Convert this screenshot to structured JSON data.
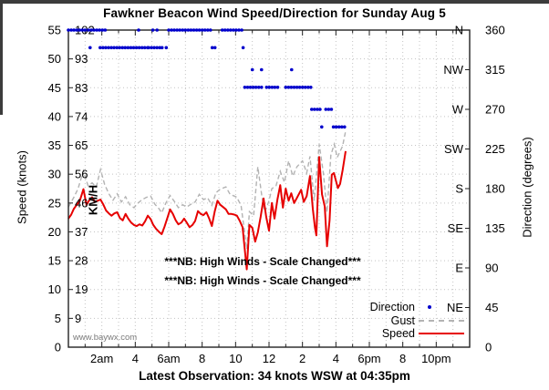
{
  "window": {
    "edge_color": "#3c3c3c"
  },
  "header": {
    "title": "Fawkner Beacon Wind Speed/Direction for Sunday Aug 5"
  },
  "footer": {
    "latest_observation": "Latest Observation: 34 knots WSW at 04:35pm"
  },
  "watermark": "www.baywx.com",
  "notes": [
    "***NB: High Winds - Scale Changed***",
    "***NB: High Winds - Scale Changed***"
  ],
  "legend": {
    "position": "bottom-right-inside",
    "items": [
      {
        "label": "Direction",
        "marker": "dot",
        "color": "#0000cc"
      },
      {
        "label": "Gust",
        "marker": "dashed-line",
        "color": "#b3b3b3"
      },
      {
        "label": "Speed",
        "marker": "solid-line",
        "color": "#e60000"
      }
    ]
  },
  "chart_data": {
    "type": "line",
    "title": "Fawkner Beacon Wind Speed/Direction for Sunday Aug 5",
    "grid": {
      "style": "dotted",
      "color": "#c3c3c3",
      "x_every_hours": 1,
      "y_every_knots": 5
    },
    "x_axis": {
      "range_hours": [
        0,
        24
      ],
      "minor_tick_hours": 1,
      "ticks": [
        {
          "hour": 2,
          "label": "2am"
        },
        {
          "hour": 4,
          "label": "4"
        },
        {
          "hour": 6,
          "label": "6am"
        },
        {
          "hour": 8,
          "label": "8"
        },
        {
          "hour": 10,
          "label": "10"
        },
        {
          "hour": 12,
          "label": "12"
        },
        {
          "hour": 14,
          "label": "2"
        },
        {
          "hour": 16,
          "label": "4"
        },
        {
          "hour": 18,
          "label": "6pm"
        },
        {
          "hour": 20,
          "label": "8"
        },
        {
          "hour": 22,
          "label": "10pm"
        }
      ]
    },
    "y_left": {
      "label": "Speed (knots)",
      "inner_scale_label": "KM/H",
      "range_knots": [
        0,
        55
      ],
      "ticks": [
        {
          "knots": 0,
          "knots_label": "0",
          "kmh_label": ""
        },
        {
          "knots": 5,
          "knots_label": "5",
          "kmh_label": "9"
        },
        {
          "knots": 10,
          "knots_label": "10",
          "kmh_label": "19"
        },
        {
          "knots": 15,
          "knots_label": "15",
          "kmh_label": "28"
        },
        {
          "knots": 20,
          "knots_label": "20",
          "kmh_label": "37"
        },
        {
          "knots": 25,
          "knots_label": "25",
          "kmh_label": "46"
        },
        {
          "knots": 30,
          "knots_label": "30",
          "kmh_label": "56"
        },
        {
          "knots": 35,
          "knots_label": "35",
          "kmh_label": "65"
        },
        {
          "knots": 40,
          "knots_label": "40",
          "kmh_label": "74"
        },
        {
          "knots": 45,
          "knots_label": "45",
          "kmh_label": "83"
        },
        {
          "knots": 50,
          "knots_label": "50",
          "kmh_label": "93"
        },
        {
          "knots": 55,
          "knots_label": "55",
          "kmh_label": "102"
        }
      ]
    },
    "y_right": {
      "label": "Direction (degrees)",
      "range_degrees": [
        0,
        360
      ],
      "ticks": [
        {
          "degrees": 0,
          "compass": "",
          "degrees_label": "0"
        },
        {
          "degrees": 45,
          "compass": "NE",
          "degrees_label": "45"
        },
        {
          "degrees": 90,
          "compass": "E",
          "degrees_label": "90"
        },
        {
          "degrees": 135,
          "compass": "SE",
          "degrees_label": "135"
        },
        {
          "degrees": 180,
          "compass": "S",
          "degrees_label": "180"
        },
        {
          "degrees": 225,
          "compass": "SW",
          "degrees_label": "225"
        },
        {
          "degrees": 270,
          "compass": "W",
          "degrees_label": "270"
        },
        {
          "degrees": 315,
          "compass": "NW",
          "degrees_label": "315"
        },
        {
          "degrees": 360,
          "compass": "N",
          "degrees_label": "360"
        }
      ]
    },
    "latest_observation": {
      "speed_knots": 34,
      "direction": "WSW",
      "time": "04:35pm"
    },
    "series": {
      "speed": {
        "name": "Speed",
        "color": "#e60000",
        "style": "solid",
        "units": "knots",
        "points": [
          [
            0,
            22.3
          ],
          [
            0.17,
            23
          ],
          [
            0.33,
            24
          ],
          [
            0.5,
            24.7
          ],
          [
            0.67,
            25.3
          ],
          [
            0.9,
            27.4
          ],
          [
            1.08,
            24.7
          ],
          [
            1.25,
            25.5
          ],
          [
            1.42,
            26
          ],
          [
            1.58,
            25.2
          ],
          [
            1.75,
            25.4
          ],
          [
            1.92,
            25.6
          ],
          [
            2.08,
            24.8
          ],
          [
            2.25,
            23.7
          ],
          [
            2.42,
            23.2
          ],
          [
            2.58,
            22.8
          ],
          [
            2.75,
            23.2
          ],
          [
            2.92,
            23.4
          ],
          [
            3.08,
            22.4
          ],
          [
            3.25,
            22
          ],
          [
            3.42,
            23.1
          ],
          [
            3.58,
            22.3
          ],
          [
            3.75,
            21.6
          ],
          [
            3.92,
            21.2
          ],
          [
            4.08,
            21
          ],
          [
            4.25,
            21.3
          ],
          [
            4.42,
            21.1
          ],
          [
            4.58,
            21.8
          ],
          [
            4.75,
            22.8
          ],
          [
            4.92,
            22.2
          ],
          [
            5.08,
            21.2
          ],
          [
            5.25,
            20.5
          ],
          [
            5.42,
            20
          ],
          [
            5.58,
            19.6
          ],
          [
            5.75,
            20.9
          ],
          [
            5.92,
            22.4
          ],
          [
            6.08,
            23.9
          ],
          [
            6.25,
            23.1
          ],
          [
            6.42,
            22
          ],
          [
            6.58,
            21.3
          ],
          [
            6.75,
            21.6
          ],
          [
            6.92,
            22.3
          ],
          [
            7.08,
            21.6
          ],
          [
            7.25,
            20.8
          ],
          [
            7.42,
            21.2
          ],
          [
            7.58,
            21.9
          ],
          [
            7.75,
            23.6
          ],
          [
            7.92,
            23.1
          ],
          [
            8.08,
            22.9
          ],
          [
            8.25,
            23.4
          ],
          [
            8.42,
            22.3
          ],
          [
            8.58,
            21
          ],
          [
            8.75,
            23.5
          ],
          [
            8.92,
            25.4
          ],
          [
            9.08,
            24.7
          ],
          [
            9.25,
            24.3
          ],
          [
            9.42,
            23.9
          ],
          [
            9.58,
            23.1
          ],
          [
            9.75,
            23.1
          ],
          [
            9.92,
            23
          ],
          [
            10.08,
            22.8
          ],
          [
            10.25,
            21.9
          ],
          [
            10.42,
            20.8
          ],
          [
            10.58,
            16
          ],
          [
            10.67,
            13.5
          ],
          [
            10.83,
            21.2
          ],
          [
            11,
            20.7
          ],
          [
            11.17,
            18.3
          ],
          [
            11.33,
            19.9
          ],
          [
            11.5,
            22.6
          ],
          [
            11.67,
            25.8
          ],
          [
            11.83,
            22.6
          ],
          [
            12,
            20.2
          ],
          [
            12.17,
            25
          ],
          [
            12.33,
            22.3
          ],
          [
            12.5,
            25.6
          ],
          [
            12.67,
            28.1
          ],
          [
            12.83,
            24.2
          ],
          [
            13,
            27.5
          ],
          [
            13.17,
            25.4
          ],
          [
            13.33,
            26.7
          ],
          [
            13.5,
            25
          ],
          [
            13.67,
            25.9
          ],
          [
            13.92,
            27.3
          ],
          [
            14.08,
            25.2
          ],
          [
            14.25,
            26.2
          ],
          [
            14.45,
            29.7
          ],
          [
            14.62,
            24
          ],
          [
            14.75,
            20.7
          ],
          [
            14.83,
            19.4
          ],
          [
            15,
            33
          ],
          [
            15.17,
            26.5
          ],
          [
            15.33,
            24.4
          ],
          [
            15.47,
            17.5
          ],
          [
            15.62,
            22
          ],
          [
            15.75,
            29.9
          ],
          [
            15.88,
            30.2
          ],
          [
            16,
            28.9
          ],
          [
            16.12,
            27.6
          ],
          [
            16.25,
            28.3
          ],
          [
            16.4,
            30.7
          ],
          [
            16.58,
            34
          ]
        ]
      },
      "gust": {
        "name": "Gust",
        "color": "#b3b3b3",
        "style": "dashed",
        "units": "knots",
        "points": [
          [
            0,
            24.3
          ],
          [
            0.33,
            26
          ],
          [
            0.58,
            27.5
          ],
          [
            0.9,
            30.6
          ],
          [
            1.17,
            28
          ],
          [
            1.42,
            28.5
          ],
          [
            1.67,
            27.8
          ],
          [
            1.92,
            30.8
          ],
          [
            2.17,
            28.2
          ],
          [
            2.42,
            26.6
          ],
          [
            2.67,
            25.5
          ],
          [
            2.92,
            26.6
          ],
          [
            3.17,
            25.2
          ],
          [
            3.42,
            26.1
          ],
          [
            3.67,
            24.7
          ],
          [
            3.92,
            24.2
          ],
          [
            4.17,
            25
          ],
          [
            4.42,
            25.6
          ],
          [
            4.67,
            26
          ],
          [
            4.92,
            26.2
          ],
          [
            5.17,
            24.8
          ],
          [
            5.42,
            24
          ],
          [
            5.58,
            23.3
          ],
          [
            5.83,
            25
          ],
          [
            6.08,
            26.3
          ],
          [
            6.33,
            25.3
          ],
          [
            6.58,
            24.2
          ],
          [
            6.83,
            24.7
          ],
          [
            7.08,
            24.3
          ],
          [
            7.33,
            24.8
          ],
          [
            7.58,
            25.2
          ],
          [
            7.83,
            26.5
          ],
          [
            8.08,
            25.6
          ],
          [
            8.33,
            25.9
          ],
          [
            8.58,
            24.6
          ],
          [
            8.83,
            26.8
          ],
          [
            9.08,
            27.4
          ],
          [
            9.42,
            27.8
          ],
          [
            9.67,
            26.5
          ],
          [
            9.92,
            26.2
          ],
          [
            10.08,
            26
          ],
          [
            10.33,
            24.5
          ],
          [
            10.58,
            19
          ],
          [
            10.67,
            17
          ],
          [
            10.83,
            23.5
          ],
          [
            11.08,
            22.8
          ],
          [
            11.33,
            31.3
          ],
          [
            11.58,
            26
          ],
          [
            11.75,
            23.4
          ],
          [
            12,
            25.4
          ],
          [
            12.17,
            27.5
          ],
          [
            12.42,
            28
          ],
          [
            12.67,
            30.5
          ],
          [
            12.92,
            28.6
          ],
          [
            13.17,
            32.3
          ],
          [
            13.42,
            29.7
          ],
          [
            13.67,
            31.3
          ],
          [
            14,
            32.3
          ],
          [
            14.25,
            30.2
          ],
          [
            14.45,
            33.1
          ],
          [
            14.7,
            25.4
          ],
          [
            15,
            35.2
          ],
          [
            15.25,
            30.2
          ],
          [
            15.47,
            23.4
          ],
          [
            15.7,
            33.3
          ],
          [
            15.9,
            35.2
          ],
          [
            16.08,
            32.9
          ],
          [
            16.4,
            34.9
          ],
          [
            16.58,
            37.5
          ]
        ]
      },
      "direction": {
        "name": "Direction",
        "color": "#0000cc",
        "style": "dots",
        "units": "degrees",
        "dot_interval_hours": 0.1667,
        "runs": [
          {
            "deg": 360,
            "from": 0.0,
            "to": 1.05
          },
          {
            "deg": 360,
            "from": 1.2,
            "to": 2.25
          },
          {
            "deg": 340,
            "from": 1.3,
            "to": 1.38
          },
          {
            "deg": 340,
            "from": 1.9,
            "to": 4.75
          },
          {
            "deg": 360,
            "from": 4.2,
            "to": 4.28
          },
          {
            "deg": 340,
            "from": 4.8,
            "to": 5.55
          },
          {
            "deg": 360,
            "from": 5.05,
            "to": 5.12
          },
          {
            "deg": 360,
            "from": 5.3,
            "to": 5.38
          },
          {
            "deg": 340,
            "from": 5.6,
            "to": 5.68
          },
          {
            "deg": 340,
            "from": 5.85,
            "to": 5.93
          },
          {
            "deg": 360,
            "from": 6.0,
            "to": 8.65
          },
          {
            "deg": 340,
            "from": 8.6,
            "to": 8.9
          },
          {
            "deg": 360,
            "from": 9.2,
            "to": 10.45
          },
          {
            "deg": 340,
            "from": 10.45,
            "to": 10.55
          },
          {
            "deg": 295,
            "from": 10.55,
            "to": 11.6
          },
          {
            "deg": 315,
            "from": 11.0,
            "to": 11.08
          },
          {
            "deg": 315,
            "from": 11.55,
            "to": 11.63
          },
          {
            "deg": 295,
            "from": 11.85,
            "to": 12.65
          },
          {
            "deg": 295,
            "from": 13.0,
            "to": 14.55
          },
          {
            "deg": 315,
            "from": 13.35,
            "to": 13.43
          },
          {
            "deg": 270,
            "from": 14.55,
            "to": 15.2
          },
          {
            "deg": 250,
            "from": 15.15,
            "to": 15.22
          },
          {
            "deg": 270,
            "from": 15.4,
            "to": 15.9
          },
          {
            "deg": 250,
            "from": 15.85,
            "to": 16.58
          }
        ]
      }
    }
  }
}
